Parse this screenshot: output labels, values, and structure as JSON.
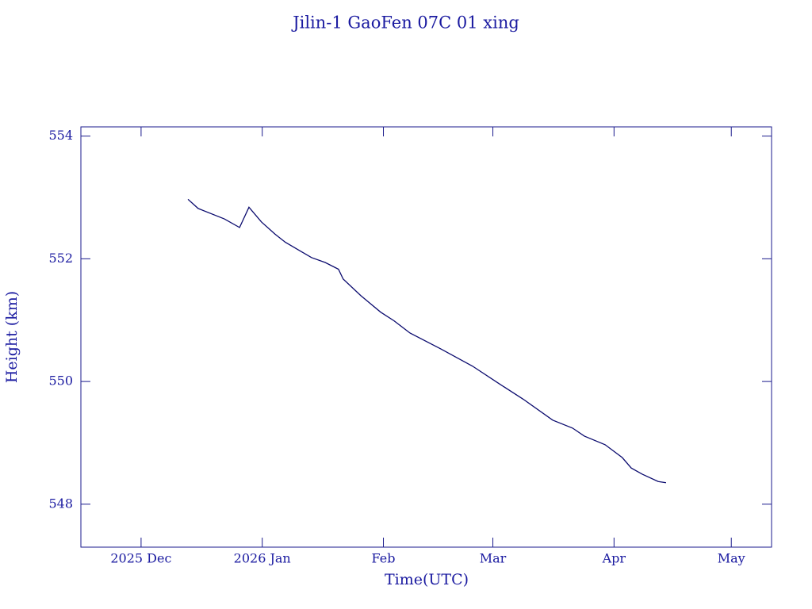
{
  "chart_data": {
    "type": "line",
    "title": "Jilin-1 GaoFen 07C 01 xing",
    "xlabel": "Time(UTC)",
    "ylabel": "Height (km)",
    "x": [
      12,
      14.6,
      21.3,
      25.2,
      27.6,
      30.8,
      34.3,
      36.9,
      43.6,
      47.1,
      50.5,
      51.7,
      56.2,
      61.3,
      64.7,
      68.8,
      76.7,
      84.8,
      91.7,
      97.8,
      105.3,
      110.4,
      113.4,
      118.7,
      123.1,
      125.4,
      128.2,
      132.3,
      134.3
    ],
    "series": [
      {
        "name": "Height",
        "color": "#0a0a6e",
        "values": [
          552.97,
          552.82,
          552.65,
          552.51,
          552.84,
          552.6,
          552.4,
          552.27,
          552.02,
          551.94,
          551.83,
          551.67,
          551.4,
          551.13,
          550.99,
          550.79,
          550.53,
          550.25,
          549.96,
          549.71,
          549.37,
          549.24,
          549.11,
          548.97,
          548.76,
          548.59,
          548.49,
          548.37,
          548.35
        ]
      }
    ],
    "xlim": [
      -15.4,
      161.3
    ],
    "xticks": [
      {
        "value": 0,
        "label": "2025 Dec"
      },
      {
        "value": 31,
        "label": "2026 Jan"
      },
      {
        "value": 62,
        "label": "Feb"
      },
      {
        "value": 90,
        "label": "Mar"
      },
      {
        "value": 121,
        "label": "Apr"
      },
      {
        "value": 151,
        "label": "May"
      }
    ],
    "ylim": [
      547.3,
      554.15
    ],
    "yticks": [
      548,
      550,
      552,
      554
    ]
  }
}
